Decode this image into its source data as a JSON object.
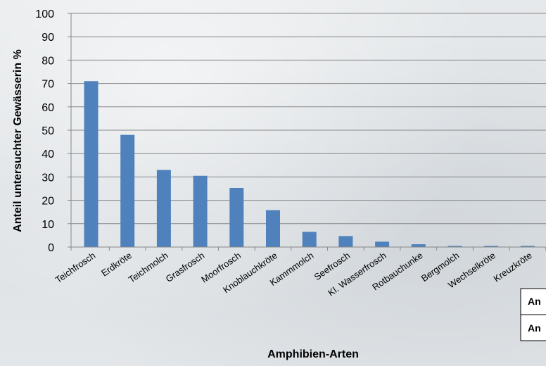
{
  "chart_data": {
    "type": "bar",
    "categories": [
      "Teichfrosch",
      "Erdkröte",
      "Teichmolch",
      "Grasfrosch",
      "Moorfrosch",
      "Knoblauchkröte",
      "Kammmolch",
      "Seefrosch",
      "Kl. Wasserfrosch",
      "Rotbauchunke",
      "Bergmolch",
      "Wechselkröte",
      "Kreuzkröte"
    ],
    "values": [
      71,
      48,
      33,
      30.5,
      25.3,
      15.8,
      6.5,
      4.7,
      2.3,
      1.2,
      0.5,
      0.5,
      0.5
    ],
    "ylabel": "Anteil untersuchter Gewässerin %",
    "xlabel": "Amphibien-Arten",
    "ylim": [
      0,
      100
    ],
    "yticks": [
      0,
      10,
      20,
      30,
      40,
      50,
      60,
      70,
      80,
      90,
      100
    ],
    "bar_color": "#4f81bd",
    "grid": true,
    "legend_table": {
      "rows": [
        "An",
        "An"
      ]
    }
  }
}
